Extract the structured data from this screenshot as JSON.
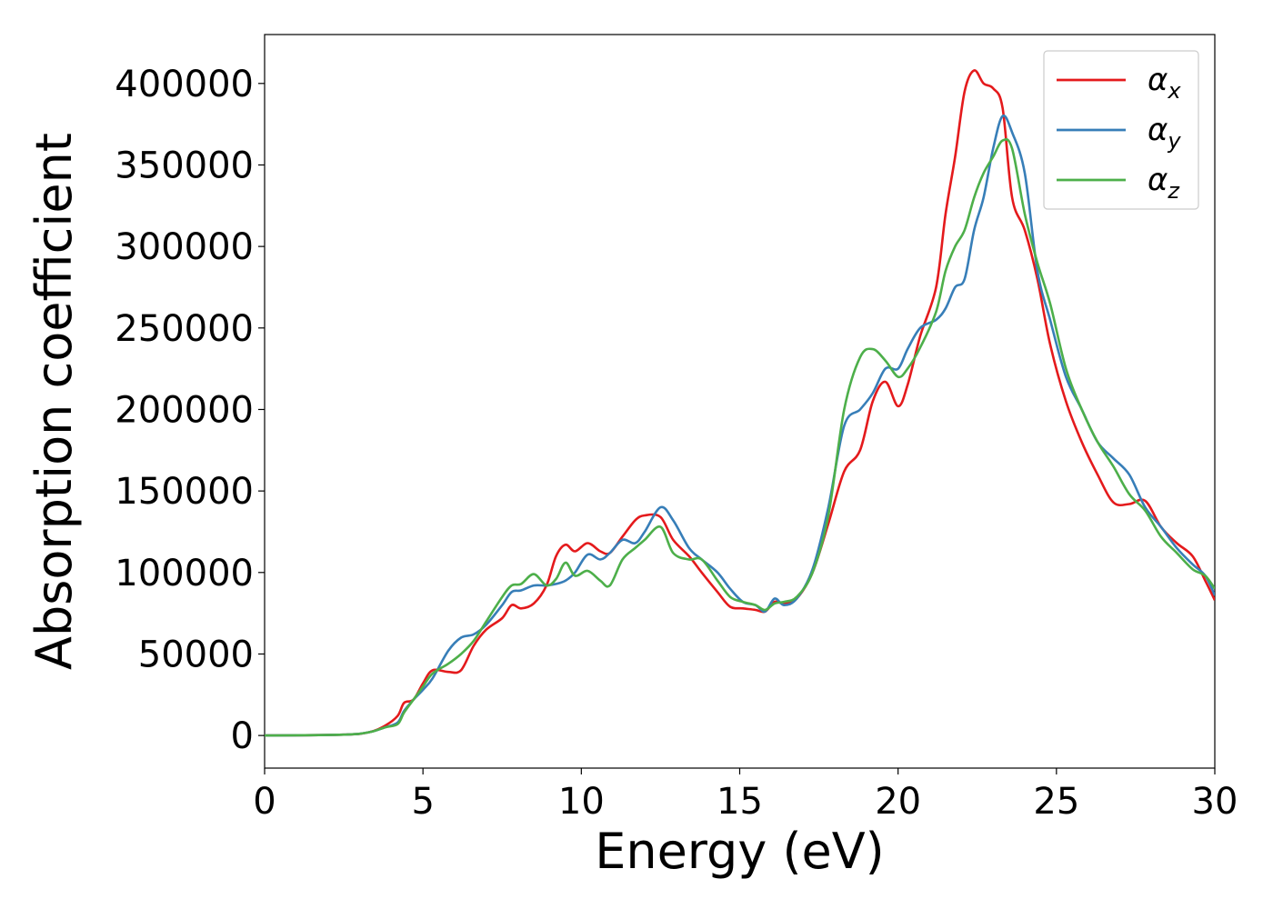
{
  "chart_data": {
    "type": "line",
    "title": "",
    "xlabel": "Energy (eV)",
    "ylabel": "Absorption coefficient",
    "xlim": [
      0,
      30
    ],
    "ylim": [
      -20000,
      430000
    ],
    "xticks": [
      "0",
      "5",
      "10",
      "15",
      "20",
      "25",
      "30"
    ],
    "yticks": [
      "0",
      "50000",
      "100000",
      "150000",
      "200000",
      "250000",
      "300000",
      "350000",
      "400000"
    ],
    "grid": false,
    "legend_position": "top-right",
    "series": [
      {
        "name": "α_x",
        "symbol": "α",
        "subscript": "x",
        "color": "#e41a1c",
        "x": [
          0,
          2.5,
          3.3,
          3.8,
          4.2,
          4.4,
          4.7,
          5.0,
          5.3,
          5.8,
          6.2,
          6.6,
          7.0,
          7.5,
          7.8,
          8.1,
          8.5,
          8.9,
          9.2,
          9.5,
          9.8,
          10.2,
          10.6,
          10.9,
          11.3,
          11.7,
          12.0,
          12.5,
          12.9,
          13.4,
          13.8,
          14.3,
          14.7,
          15.1,
          15.5,
          15.8,
          16.1,
          16.4,
          16.8,
          17.3,
          17.8,
          18.3,
          18.8,
          19.2,
          19.6,
          20.0,
          20.3,
          20.7,
          21.2,
          21.5,
          21.8,
          22.1,
          22.4,
          22.7,
          23.0,
          23.3,
          23.6,
          24.0,
          24.4,
          24.8,
          25.3,
          25.8,
          26.3,
          26.8,
          27.3,
          27.8,
          28.3,
          28.8,
          29.3,
          29.7,
          30.0
        ],
        "y": [
          0,
          500,
          2000,
          6000,
          12000,
          20000,
          22000,
          32000,
          40000,
          39000,
          40000,
          55000,
          65000,
          72000,
          80000,
          78000,
          81000,
          92000,
          110000,
          117000,
          113000,
          118000,
          113000,
          112000,
          122000,
          132000,
          135000,
          134000,
          120000,
          110000,
          100000,
          88000,
          79000,
          78000,
          77000,
          76000,
          82000,
          81000,
          84000,
          100000,
          130000,
          162000,
          175000,
          205000,
          217000,
          202000,
          215000,
          245000,
          275000,
          320000,
          355000,
          395000,
          408000,
          400000,
          397000,
          385000,
          330000,
          310000,
          280000,
          240000,
          205000,
          180000,
          160000,
          143000,
          142000,
          144000,
          128000,
          118000,
          110000,
          95000,
          83000
        ]
      },
      {
        "name": "α_y",
        "symbol": "α",
        "subscript": "y",
        "color": "#377eb8",
        "x": [
          0,
          2.5,
          3.3,
          3.8,
          4.2,
          4.4,
          4.7,
          5.0,
          5.3,
          5.8,
          6.2,
          6.6,
          7.0,
          7.5,
          7.8,
          8.1,
          8.5,
          8.9,
          9.2,
          9.5,
          9.8,
          10.2,
          10.6,
          10.9,
          11.3,
          11.7,
          12.0,
          12.5,
          12.9,
          13.4,
          13.8,
          14.3,
          14.7,
          15.1,
          15.5,
          15.8,
          16.1,
          16.4,
          16.8,
          17.3,
          17.8,
          18.3,
          18.8,
          19.2,
          19.6,
          20.0,
          20.3,
          20.7,
          21.2,
          21.5,
          21.8,
          22.1,
          22.4,
          22.7,
          23.0,
          23.3,
          23.6,
          24.0,
          24.4,
          24.8,
          25.3,
          25.8,
          26.3,
          26.8,
          27.3,
          27.8,
          28.3,
          28.8,
          29.3,
          29.7,
          30.0
        ],
        "y": [
          0,
          500,
          2000,
          5000,
          8000,
          15000,
          22000,
          28000,
          35000,
          52000,
          60000,
          62000,
          68000,
          80000,
          88000,
          89000,
          92000,
          92000,
          93000,
          95000,
          100000,
          111000,
          108000,
          112000,
          120000,
          118000,
          125000,
          140000,
          132000,
          115000,
          108000,
          100000,
          90000,
          82000,
          80000,
          76000,
          84000,
          80000,
          84000,
          102000,
          140000,
          190000,
          200000,
          210000,
          225000,
          225000,
          237000,
          250000,
          255000,
          262000,
          275000,
          280000,
          310000,
          330000,
          360000,
          380000,
          370000,
          345000,
          285000,
          255000,
          220000,
          200000,
          180000,
          170000,
          160000,
          140000,
          128000,
          115000,
          105000,
          98000,
          86000
        ]
      },
      {
        "name": "α_z",
        "symbol": "α",
        "subscript": "z",
        "color": "#4daf4a",
        "x": [
          0,
          2.5,
          3.3,
          3.8,
          4.2,
          4.4,
          4.7,
          5.0,
          5.3,
          5.8,
          6.2,
          6.6,
          7.0,
          7.5,
          7.8,
          8.1,
          8.5,
          8.9,
          9.2,
          9.5,
          9.8,
          10.2,
          10.6,
          10.9,
          11.3,
          11.7,
          12.0,
          12.5,
          12.9,
          13.4,
          13.8,
          14.3,
          14.7,
          15.1,
          15.5,
          15.8,
          16.1,
          16.4,
          16.8,
          17.3,
          17.8,
          18.3,
          18.8,
          19.2,
          19.6,
          20.0,
          20.3,
          20.7,
          21.2,
          21.5,
          21.8,
          22.1,
          22.4,
          22.7,
          23.0,
          23.3,
          23.6,
          24.0,
          24.4,
          24.8,
          25.3,
          25.8,
          26.3,
          26.8,
          27.3,
          27.8,
          28.3,
          28.8,
          29.3,
          29.7,
          30.0
        ],
        "y": [
          0,
          500,
          2000,
          5000,
          7000,
          14000,
          22000,
          30000,
          38000,
          44000,
          50000,
          58000,
          70000,
          85000,
          92000,
          93000,
          99000,
          92000,
          96000,
          106000,
          98000,
          101000,
          95000,
          92000,
          108000,
          115000,
          120000,
          128000,
          112000,
          108000,
          108000,
          95000,
          85000,
          82000,
          80000,
          77000,
          81000,
          82000,
          85000,
          100000,
          135000,
          200000,
          232000,
          237000,
          230000,
          220000,
          225000,
          238000,
          260000,
          285000,
          300000,
          310000,
          330000,
          345000,
          355000,
          365000,
          360000,
          320000,
          290000,
          265000,
          225000,
          200000,
          180000,
          165000,
          148000,
          138000,
          122000,
          112000,
          102000,
          98000,
          90000
        ]
      }
    ]
  }
}
